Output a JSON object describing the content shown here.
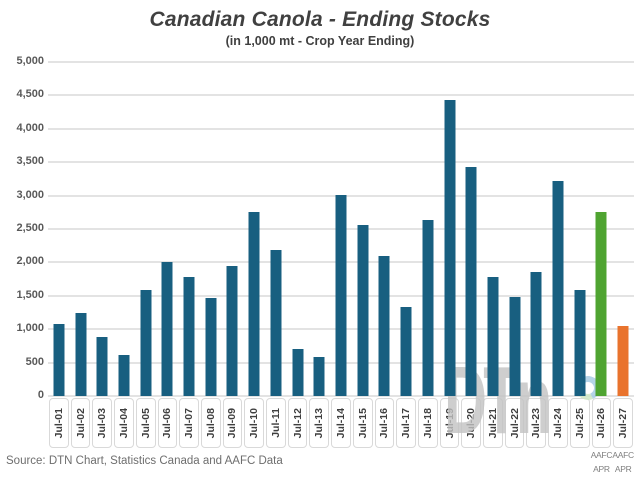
{
  "header": {
    "title": "Canadian Canola - Ending Stocks",
    "subtitle": "(in 1,000 mt - Crop Year Ending)"
  },
  "source_note": "Source: DTN Chart, Statistics Canada and AAFC Data",
  "watermark": {
    "text": "DTn",
    "logo": "dtn-ring-logo"
  },
  "colors": {
    "bar_default": "#185f80",
    "bar_forecast_green": "#4fa431",
    "bar_forecast_orange": "#e9732d",
    "gridline": "#e3e3e3",
    "title_text": "#404040",
    "axis_text": "#595959",
    "category_text": "#3f3f3f",
    "source_text": "#6e6e6e",
    "annotation_text": "#7f7f7f",
    "label_box_border": "#d9d9d9",
    "watermark_gray": "#c3c3c3",
    "watermark_blue": "#a9cde5",
    "watermark_green": "#cfe8c5"
  },
  "chart_data": {
    "type": "bar",
    "title": "Canadian Canola - Ending Stocks",
    "subtitle": "(in 1,000 mt - Crop Year Ending)",
    "xlabel": "",
    "ylabel": "",
    "grid": "horizontal",
    "legend": "none",
    "ylim": [
      0,
      5000
    ],
    "ytick_step": 500,
    "ytick_values": [
      0,
      500,
      1000,
      1500,
      2000,
      2500,
      3000,
      3500,
      4000,
      4500,
      5000
    ],
    "ytick_labels": [
      "0",
      "500",
      "1,000",
      "1,500",
      "2,000",
      "2,500",
      "3,000",
      "3,500",
      "4,000",
      "4,500",
      "5,000"
    ],
    "categories": [
      "Jul-01",
      "Jul-02",
      "Jul-03",
      "Jul-04",
      "Jul-05",
      "Jul-06",
      "Jul-07",
      "Jul-08",
      "Jul-09",
      "Jul-10",
      "Jul-11",
      "Jul-12",
      "Jul-13",
      "Jul-14",
      "Jul-15",
      "Jul-16",
      "Jul-17",
      "Jul-18",
      "Jul-19",
      "Jul-20",
      "Jul-21",
      "Jul-22",
      "Jul-23",
      "Jul-24",
      "Jul-25",
      "Jul-26",
      "Jul-27"
    ],
    "values": [
      1080,
      1240,
      890,
      610,
      1580,
      2000,
      1780,
      1460,
      1950,
      2750,
      2180,
      700,
      590,
      3010,
      2560,
      2090,
      1330,
      2630,
      4430,
      3430,
      1780,
      1480,
      1860,
      3220,
      1590,
      2760,
      1050
    ],
    "bar_color_overrides": {
      "Jul-26": "#4fa431",
      "Jul-27": "#e9732d"
    },
    "annotations": [
      {
        "category": "Jul-26",
        "lines": [
          "AAFC",
          "APR"
        ]
      },
      {
        "category": "Jul-27",
        "lines": [
          "AAFC",
          "APR"
        ]
      }
    ]
  }
}
